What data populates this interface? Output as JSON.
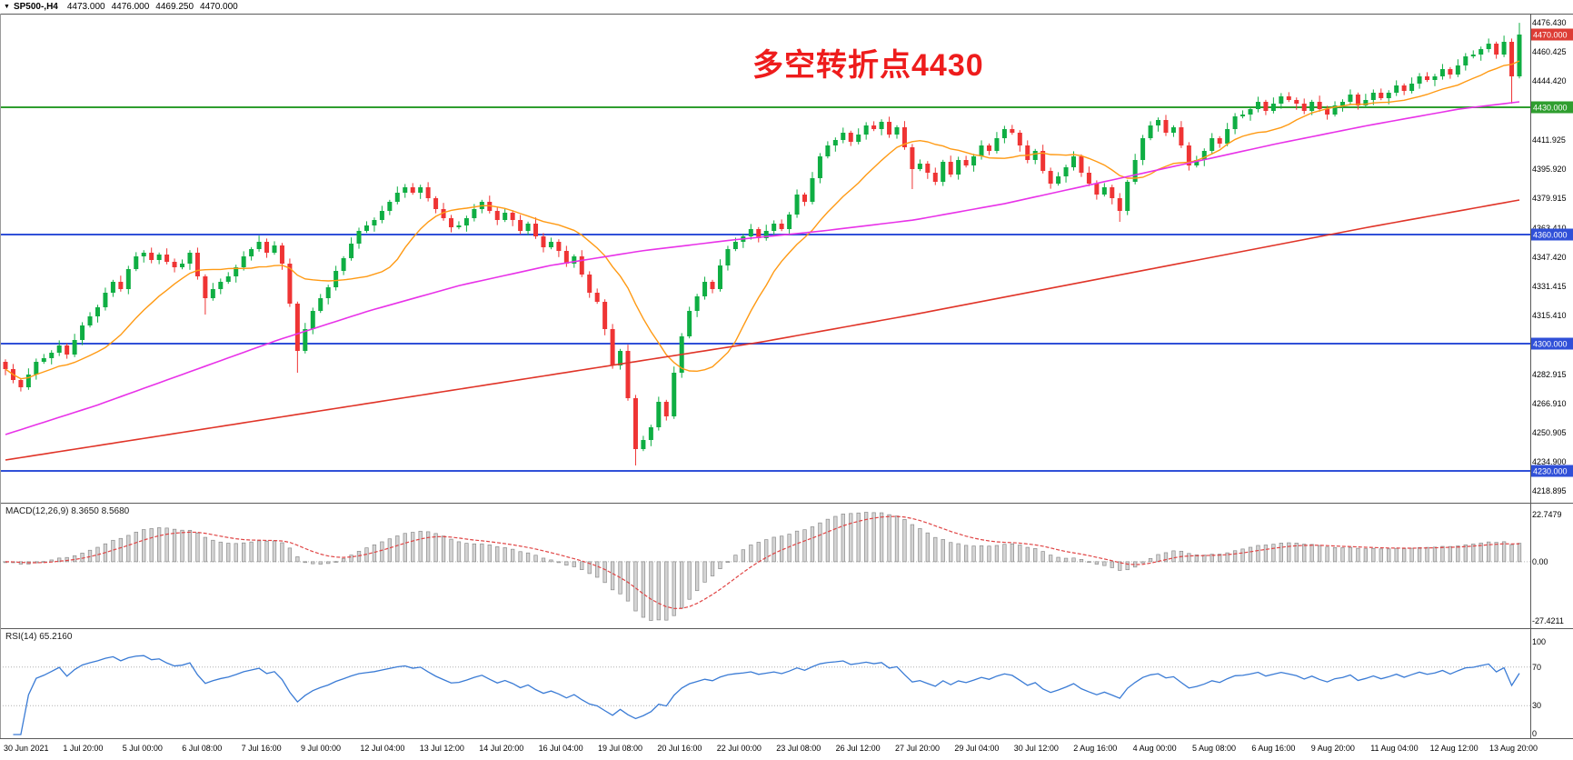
{
  "top_bar": {
    "dropdown_icon": "▼",
    "symbol_timeframe": "SP500-,H4",
    "open": "4473.000",
    "high": "4476.000",
    "low": "4469.250",
    "close": "4470.000"
  },
  "annotation": {
    "text": "多空转折点4430",
    "color": "#ee1c1c"
  },
  "chart_data": {
    "type": "candlestick",
    "symbol": "SP500-",
    "timeframe": "H4",
    "up_color": "#0fae43",
    "down_color": "#ef3434",
    "first_open": 4290,
    "closes": [
      4286,
      4280,
      4276,
      4283,
      4290,
      4292,
      4295,
      4299,
      4294,
      4302,
      4310,
      4315,
      4320,
      4328,
      4334,
      4330,
      4341,
      4348,
      4350,
      4346,
      4349,
      4345,
      4342,
      4344,
      4350,
      4337,
      4325,
      4330,
      4334,
      4337,
      4342,
      4348,
      4352,
      4356,
      4350,
      4354,
      4344,
      4322,
      4296,
      4308,
      4318,
      4325,
      4331,
      4340,
      4347,
      4355,
      4362,
      4365,
      4368,
      4373,
      4378,
      4383,
      4386,
      4383,
      4386,
      4380,
      4374,
      4369,
      4364,
      4365,
      4369,
      4374,
      4378,
      4373,
      4368,
      4372,
      4368,
      4362,
      4366,
      4359,
      4353,
      4356,
      4351,
      4344,
      4348,
      4338,
      4328,
      4323,
      4308,
      4288,
      4296,
      4270,
      4242,
      4247,
      4254,
      4268,
      4260,
      4284,
      4304,
      4318,
      4326,
      4334,
      4330,
      4343,
      4352,
      4356,
      4359,
      4363,
      4358,
      4362,
      4366,
      4363,
      4371,
      4382,
      4378,
      4391,
      4403,
      4409,
      4412,
      4416,
      4411,
      4415,
      4420,
      4418,
      4422,
      4415,
      4419,
      4408,
      4396,
      4399,
      4394,
      4389,
      4400,
      4393,
      4401,
      4398,
      4403,
      4409,
      4406,
      4413,
      4418,
      4416,
      4409,
      4401,
      4406,
      4395,
      4388,
      4392,
      4397,
      4403,
      4394,
      4388,
      4382,
      4386,
      4380,
      4373,
      4389,
      4401,
      4413,
      4420,
      4423,
      4416,
      4419,
      4409,
      4398,
      4401,
      4406,
      4413,
      4410,
      4418,
      4425,
      4426,
      4429,
      4433,
      4428,
      4432,
      4436,
      4434,
      4432,
      4428,
      4433,
      4429,
      4426,
      4431,
      4433,
      4437,
      4431,
      4434,
      4438,
      4435,
      4438,
      4442,
      4439,
      4443,
      4447,
      4445,
      4447,
      4451,
      4448,
      4453,
      4458,
      4459,
      4462,
      4465,
      4459,
      4466,
      4447,
      4470
    ],
    "wick_overrides": {
      "26": {
        "low": 4316
      },
      "38": {
        "low": 4284
      },
      "82": {
        "low": 4233
      },
      "118": {
        "low": 4385
      },
      "145": {
        "low": 4367
      },
      "196": {
        "low": 4432
      },
      "197": {
        "high": 4476.43
      }
    },
    "price_axis": {
      "min": 4215,
      "max": 4480,
      "labels": [
        "4476.430",
        "4460.425",
        "4444.420",
        "4411.925",
        "4395.920",
        "4379.915",
        "4363.410",
        "4347.420",
        "4331.415",
        "4315.410",
        "4282.915",
        "4266.910",
        "4250.905",
        "4234.900",
        "4218.895"
      ]
    },
    "badges": [
      {
        "text": "4470.000",
        "value": 4470,
        "color": "#dd3d35"
      },
      {
        "text": "4430.000",
        "value": 4430,
        "color": "#2f9e2f"
      },
      {
        "text": "4360.000",
        "value": 4360,
        "color": "#3050d8"
      },
      {
        "text": "4300.000",
        "value": 4300,
        "color": "#3050d8"
      },
      {
        "text": "4230.000",
        "value": 4230,
        "color": "#3050d8"
      }
    ],
    "hlines": [
      {
        "value": 4430,
        "color": "#2f9e2f"
      },
      {
        "value": 4360,
        "color": "#3050d8"
      },
      {
        "value": 4300,
        "color": "#3050d8"
      },
      {
        "value": 4230,
        "color": "#3050d8"
      }
    ],
    "ma_lines": {
      "fast": {
        "name": "fast-ma",
        "color": "#ff9a14",
        "window": 14
      },
      "mid": {
        "name": "mid-ma",
        "color": "#e832e8",
        "points": [
          [
            0,
            4250
          ],
          [
            0.06,
            4266
          ],
          [
            0.12,
            4284
          ],
          [
            0.18,
            4302
          ],
          [
            0.24,
            4318
          ],
          [
            0.3,
            4332
          ],
          [
            0.36,
            4343
          ],
          [
            0.42,
            4351
          ],
          [
            0.48,
            4357
          ],
          [
            0.54,
            4362
          ],
          [
            0.6,
            4368
          ],
          [
            0.66,
            4377
          ],
          [
            0.72,
            4388
          ],
          [
            0.78,
            4399
          ],
          [
            0.84,
            4410
          ],
          [
            0.9,
            4420
          ],
          [
            0.96,
            4429
          ],
          [
            1,
            4433
          ]
        ]
      },
      "slow": {
        "name": "slow-ma",
        "color": "#e03428",
        "points": [
          [
            0,
            4236
          ],
          [
            0.1,
            4249
          ],
          [
            0.2,
            4262
          ],
          [
            0.3,
            4275
          ],
          [
            0.4,
            4288
          ],
          [
            0.5,
            4301
          ],
          [
            0.6,
            4316
          ],
          [
            0.7,
            4332
          ],
          [
            0.8,
            4348
          ],
          [
            0.9,
            4364
          ],
          [
            1,
            4379
          ]
        ]
      }
    },
    "macd": {
      "label": "MACD(12,26,9) 8.3650 8.5680",
      "fast": 12,
      "slow": 26,
      "signal": 9,
      "axis": [
        "22.7479",
        "0.00",
        "-27.4211"
      ],
      "hist_color": "#d4d4d4",
      "hist_border": "#8c8c8c",
      "signal_color": "#e04444"
    },
    "rsi": {
      "label": "RSI(14) 65.2160",
      "period": 14,
      "axis": [
        "100",
        "70",
        "30",
        "0"
      ],
      "levels": [
        70,
        30
      ],
      "color": "#3a7bd5"
    },
    "time_axis": [
      "30 Jun 2021",
      "1 Jul 20:00",
      "5 Jul 00:00",
      "6 Jul 08:00",
      "7 Jul 16:00",
      "9 Jul 00:00",
      "12 Jul 04:00",
      "13 Jul 12:00",
      "14 Jul 20:00",
      "16 Jul 04:00",
      "19 Jul 08:00",
      "20 Jul 16:00",
      "22 Jul 00:00",
      "23 Jul 08:00",
      "26 Jul 12:00",
      "27 Jul 20:00",
      "29 Jul 04:00",
      "30 Jul 12:00",
      "2 Aug 16:00",
      "4 Aug 00:00",
      "5 Aug 08:00",
      "6 Aug 16:00",
      "9 Aug 20:00",
      "11 Aug 04:00",
      "12 Aug 12:00",
      "13 Aug 20:00"
    ]
  }
}
